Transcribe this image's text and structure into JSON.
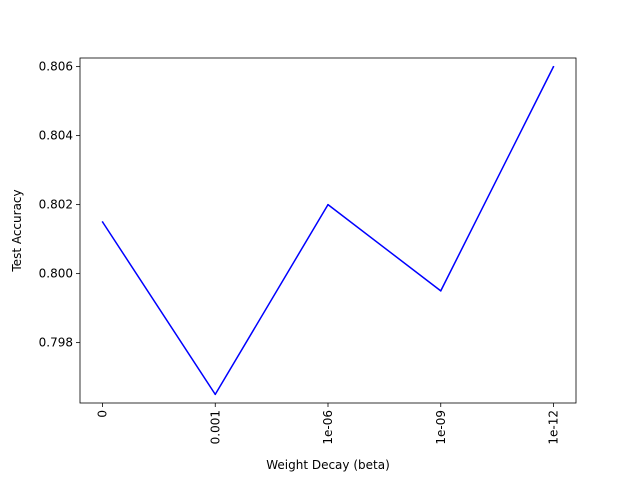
{
  "chart_data": {
    "type": "line",
    "title": "",
    "xlabel": "Weight Decay (beta)",
    "ylabel": "Test Accuracy",
    "categories": [
      "0",
      "0.001",
      "1e-06",
      "1e-09",
      "1e-12"
    ],
    "series": [
      {
        "values": [
          0.8015,
          0.7965,
          0.802,
          0.7995,
          0.806
        ],
        "color": "#0000ff"
      }
    ],
    "yticks": [
      0.798,
      0.8,
      0.802,
      0.804,
      0.806
    ],
    "ytick_labels": [
      "0.798",
      "0.800",
      "0.802",
      "0.804",
      "0.806"
    ],
    "ylim": [
      0.79625,
      0.80625
    ],
    "xtick_rotation": "vertical",
    "grid": false,
    "legend": "none"
  }
}
